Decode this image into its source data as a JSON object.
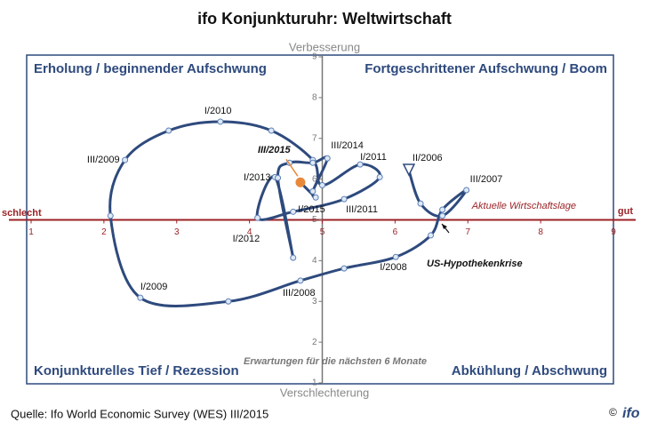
{
  "chart_data": {
    "type": "scatter",
    "title": "ifo Konjunkturuhr: Weltwirtschaft",
    "top_label": "Verbesserung",
    "bottom_label": "Verschlechterung",
    "left_label": "schlecht",
    "right_label": "gut",
    "quadrant_labels": [
      "Erholung / beginnender Aufschwung",
      "Fortgeschrittener Aufschwung / Boom",
      "Konjunkturelles Tief / Rezession",
      "Abkühlung / Abschwung"
    ],
    "x_axis_label": "Aktuelle Wirtschaftslage",
    "y_axis_label": "Erwartungen für die nächsten 6 Monate",
    "annotation": "US-Hypothekenkrise",
    "source": "Quelle: Ifo World Economic Survey (WES) III/2015",
    "copyright": "©",
    "logo": "ifo",
    "xlim": [
      1,
      9
    ],
    "ylim": [
      1,
      9
    ],
    "xticks": [
      1,
      2,
      3,
      4,
      5,
      6,
      7,
      8,
      9
    ],
    "yticks": [
      1,
      2,
      3,
      4,
      5,
      6,
      7,
      8,
      9
    ],
    "series": [
      {
        "color": "#2e4a7d",
        "current_color": "#e8883a",
        "x": [
          6.19,
          6.35,
          6.65,
          6.98,
          6.65,
          6.49,
          6.01,
          5.3,
          4.7,
          3.71,
          2.5,
          2.09,
          2.29,
          2.89,
          3.6,
          4.3,
          4.87,
          5.0,
          5.52,
          5.79,
          5.3,
          4.6,
          4.11,
          4.35,
          4.6,
          4.39,
          4.55,
          4.87,
          5.07,
          4.87,
          4.91,
          4.7
        ],
        "y": [
          6.21,
          5.4,
          5.1,
          5.73,
          5.25,
          4.62,
          4.09,
          3.81,
          3.51,
          3.0,
          3.09,
          5.1,
          6.47,
          7.19,
          7.41,
          7.19,
          6.47,
          5.85,
          6.36,
          6.05,
          5.51,
          5.2,
          5.05,
          6.05,
          4.07,
          6.03,
          6.4,
          6.4,
          6.51,
          5.7,
          5.55,
          5.92
        ],
        "point_labels": [
          "II/2006",
          null,
          null,
          "III/2007",
          null,
          null,
          "I/2008",
          null,
          "III/2008",
          null,
          "I/2009",
          null,
          "III/2009",
          null,
          "I/2010",
          null,
          null,
          null,
          "I/2011",
          null,
          "III/2011",
          null,
          "I/2012",
          null,
          null,
          "I/2013",
          null,
          null,
          "III/2014",
          null,
          "I/2015",
          "III/2015"
        ]
      }
    ]
  }
}
